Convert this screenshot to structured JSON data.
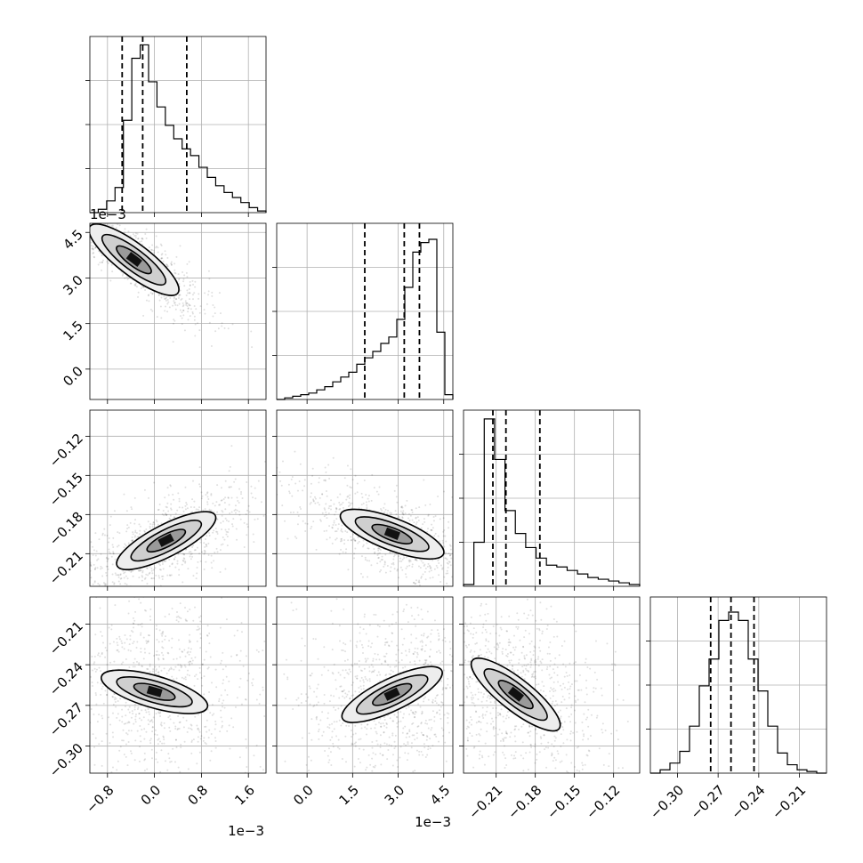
{
  "chart_data": {
    "type": "corner",
    "grid": true,
    "parameters": [
      {
        "range": [
          -0.0011,
          0.0019
        ],
        "ticks": [
          -0.0008,
          0.0,
          0.0008,
          0.0016
        ],
        "tick_labels": [
          "−0.8",
          "0.0",
          "0.8",
          "1.6"
        ],
        "offset_label": "1e−3",
        "quantiles": [
          -0.00055,
          -0.0002,
          0.00055
        ],
        "hist_bins": [
          0,
          0.02,
          0.07,
          0.15,
          0.55,
          0.92,
          1.0,
          0.78,
          0.63,
          0.52,
          0.44,
          0.38,
          0.34,
          0.27,
          0.21,
          0.16,
          0.12,
          0.09,
          0.06,
          0.03,
          0.01
        ],
        "hist_ymax": 1.05
      },
      {
        "range": [
          -0.001,
          0.0048
        ],
        "ticks": [
          0.0,
          0.0015,
          0.003,
          0.0045
        ],
        "tick_labels": [
          "0.0",
          "1.5",
          "3.0",
          "4.5"
        ],
        "offset_label": "1e−3",
        "quantiles": [
          0.0019,
          0.0032,
          0.0037
        ],
        "hist_bins": [
          0,
          0.01,
          0.02,
          0.03,
          0.04,
          0.06,
          0.08,
          0.11,
          0.14,
          0.17,
          0.22,
          0.26,
          0.3,
          0.35,
          0.39,
          0.5,
          0.7,
          0.92,
          0.98,
          1.0,
          0.42,
          0.03
        ],
        "hist_ymax": 1.1
      },
      {
        "range": [
          -0.235,
          -0.1
        ],
        "ticks": [
          -0.21,
          -0.18,
          -0.15,
          -0.12
        ],
        "tick_labels": [
          "−0.21",
          "−0.18",
          "−0.15",
          "−0.12"
        ],
        "quantiles": [
          -0.2125,
          -0.2025,
          -0.1765
        ],
        "hist_bins": [
          0.01,
          0.25,
          0.95,
          0.72,
          0.43,
          0.3,
          0.22,
          0.16,
          0.12,
          0.11,
          0.09,
          0.07,
          0.05,
          0.04,
          0.03,
          0.02,
          0.01
        ],
        "hist_ymax": 1.0
      },
      {
        "range": [
          -0.32,
          -0.19
        ],
        "ticks": [
          -0.3,
          -0.27,
          -0.24,
          -0.21
        ],
        "tick_labels": [
          "−0.30",
          "−0.27",
          "−0.24",
          "−0.21"
        ],
        "quantiles": [
          -0.2755,
          -0.2605,
          -0.2435
        ],
        "hist_bins": [
          0,
          0.02,
          0.06,
          0.13,
          0.28,
          0.52,
          0.68,
          0.91,
          0.96,
          0.91,
          0.68,
          0.49,
          0.28,
          0.12,
          0.05,
          0.02,
          0.01,
          0.0
        ],
        "hist_ymax": 1.05
      }
    ],
    "pairs": [
      {
        "x": 0,
        "y": 1,
        "center": [
          -0.00035,
          0.0036
        ],
        "direction": [
          0.000563,
          -0.000826
        ],
        "spread": [
          0.0028,
          0.00025
        ]
      },
      {
        "x": 0,
        "y": 2,
        "center": [
          0.0002,
          -0.2
        ],
        "direction": [
          0.00089,
          0.0206
        ],
        "spread": [
          0.0018,
          0.00035
        ]
      },
      {
        "x": 1,
        "y": 2,
        "center": [
          0.0028,
          -0.195
        ],
        "direction": [
          0.00273,
          -0.0245
        ],
        "spread": [
          0.0022,
          0.0004
        ]
      },
      {
        "x": 0,
        "y": 3,
        "center": [
          0.0,
          -0.26
        ],
        "direction": [
          0.00113,
          -0.0142
        ],
        "spread": [
          0.0015,
          0.0009
        ]
      },
      {
        "x": 1,
        "y": 3,
        "center": [
          0.0028,
          -0.262
        ],
        "direction": [
          0.00127,
          0.0137
        ],
        "spread": [
          0.0016,
          0.0009
        ]
      },
      {
        "x": 2,
        "y": 3,
        "center": [
          -0.195,
          -0.262
        ],
        "direction": [
          0.03,
          -0.0227
        ],
        "spread": [
          0.85,
          0.42
        ]
      }
    ]
  }
}
